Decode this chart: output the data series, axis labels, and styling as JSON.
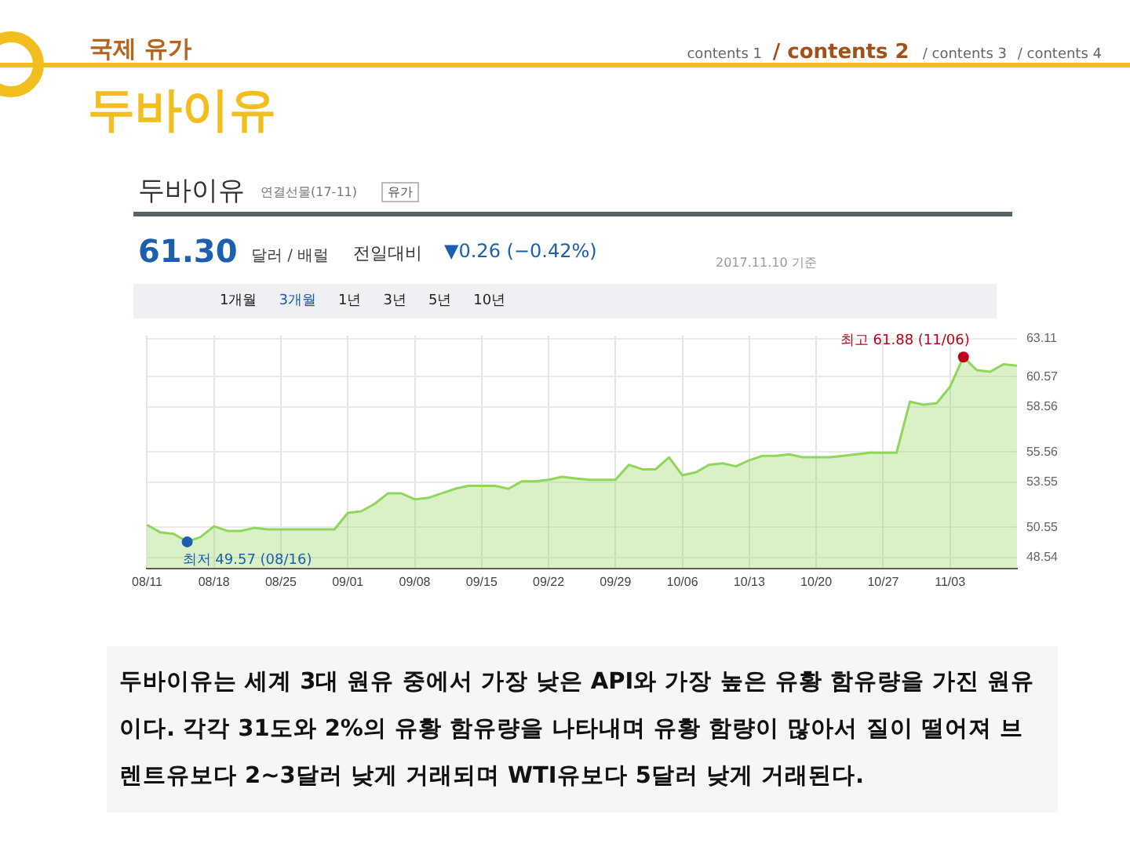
{
  "chart_data": {
    "type": "area",
    "title": "두바이유",
    "subtitle": "국제 유가",
    "categories": [
      "08/11",
      null,
      null,
      null,
      null,
      "08/18",
      null,
      null,
      null,
      null,
      "08/25",
      null,
      null,
      null,
      null,
      "09/01",
      null,
      null,
      null,
      null,
      "09/08",
      null,
      null,
      null,
      null,
      "09/15",
      null,
      null,
      null,
      null,
      "09/22",
      null,
      null,
      null,
      null,
      "09/29",
      null,
      null,
      null,
      null,
      "10/06",
      null,
      null,
      null,
      null,
      "10/13",
      null,
      null,
      null,
      null,
      "10/20",
      null,
      null,
      null,
      null,
      "10/27",
      null,
      null,
      null,
      null,
      "11/03",
      null,
      null,
      null,
      null,
      null
    ],
    "values": [
      50.7,
      50.2,
      50.1,
      49.57,
      49.9,
      50.6,
      50.3,
      50.3,
      50.5,
      50.4,
      50.4,
      50.4,
      50.4,
      50.4,
      50.4,
      51.5,
      51.6,
      52.1,
      52.8,
      52.8,
      52.4,
      52.5,
      52.8,
      53.1,
      53.3,
      53.3,
      53.3,
      53.1,
      53.6,
      53.6,
      53.7,
      53.9,
      53.8,
      53.7,
      53.7,
      53.7,
      54.7,
      54.4,
      54.4,
      55.2,
      54.0,
      54.2,
      54.7,
      54.8,
      54.6,
      55.0,
      55.3,
      55.3,
      55.4,
      55.2,
      55.2,
      55.2,
      55.3,
      55.4,
      55.5,
      55.5,
      55.5,
      58.9,
      58.7,
      58.8,
      59.9,
      61.88,
      61.0,
      60.9,
      61.4,
      61.3
    ],
    "color": "#8fd65a",
    "ylim": [
      47.8,
      63.3
    ],
    "yticks": [
      48.54,
      50.55,
      53.55,
      55.56,
      58.56,
      60.57,
      63.11
    ],
    "grid": true,
    "annotations": [
      "contents 1",
      "/ contents 2",
      "/ contents 3",
      "/ contents 4",
      "두바이유",
      "연결선물(17-11)",
      "유가",
      "61.30",
      "달러 / 배럴",
      "전일대비",
      "▼0.26 (−0.42%)",
      "2017.11.10 기준",
      "1개월",
      "3개월",
      "1년",
      "3년",
      "5년",
      "10년",
      "두바이유는 세계 3대 원유 중에서 가장 낮은 API와 가장 높은 유황 함유량을 가진 원유이다. 각각 31도와 2%의 유황 함유량을 나타내며 유황 함량이 많아서 질이 떨어져 브렌트유보다 2~3달러 낮게 거래되며 WTI유보다 5달러 낮게 거래된다.",
      "최저 49.57 (08/16)",
      "최고 61.88 (11/06)"
    ]
  }
}
